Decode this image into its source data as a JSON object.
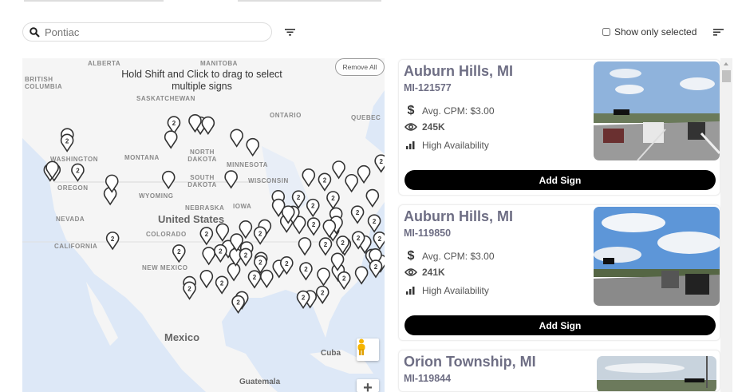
{
  "search": {
    "placeholder": "Pontiac",
    "value": ""
  },
  "toolbar": {
    "show_only_selected": "Show only selected",
    "show_only_selected_checked": false,
    "filter_icon": "filter-icon",
    "sort_icon": "sort-icon"
  },
  "map": {
    "hint": "Hold Shift and Click to drag to select multiple signs",
    "remove_all": "Remove All",
    "labels": [
      "ALBERTA",
      "MANITOBA",
      "BRITISH COLUMBIA",
      "SASKATCHEWAN",
      "ONTARIO",
      "QUEBEC",
      "MONTANA",
      "WASHINGTON",
      "OREGON",
      "SOUTH DAKOTA",
      "NORTH DAKOTA",
      "MINNESOTA",
      "WISCONSIN",
      "WYOMING",
      "NEBRASKA",
      "IOWA",
      "NEVADA",
      "CALIFORNIA",
      "COLORADO",
      "NEW MEXICO",
      "United States",
      "Mexico",
      "Cuba",
      "Guatemala"
    ],
    "cluster_label": "2",
    "colors": {
      "water": "#dde8f7",
      "land": "#f5f5f5",
      "marker": "#333333"
    }
  },
  "cards": [
    {
      "title": "Auburn Hills, MI",
      "id": "MI-121577",
      "cpm": "Avg. CPM: $3.00",
      "views": "245K",
      "availability": "High Availability",
      "button": "Add Sign"
    },
    {
      "title": "Auburn Hills, MI",
      "id": "MI-119850",
      "cpm": "Avg. CPM: $3.00",
      "views": "241K",
      "availability": "High Availability",
      "button": "Add Sign"
    },
    {
      "title": "Orion Township, MI",
      "id": "MI-119844"
    }
  ]
}
